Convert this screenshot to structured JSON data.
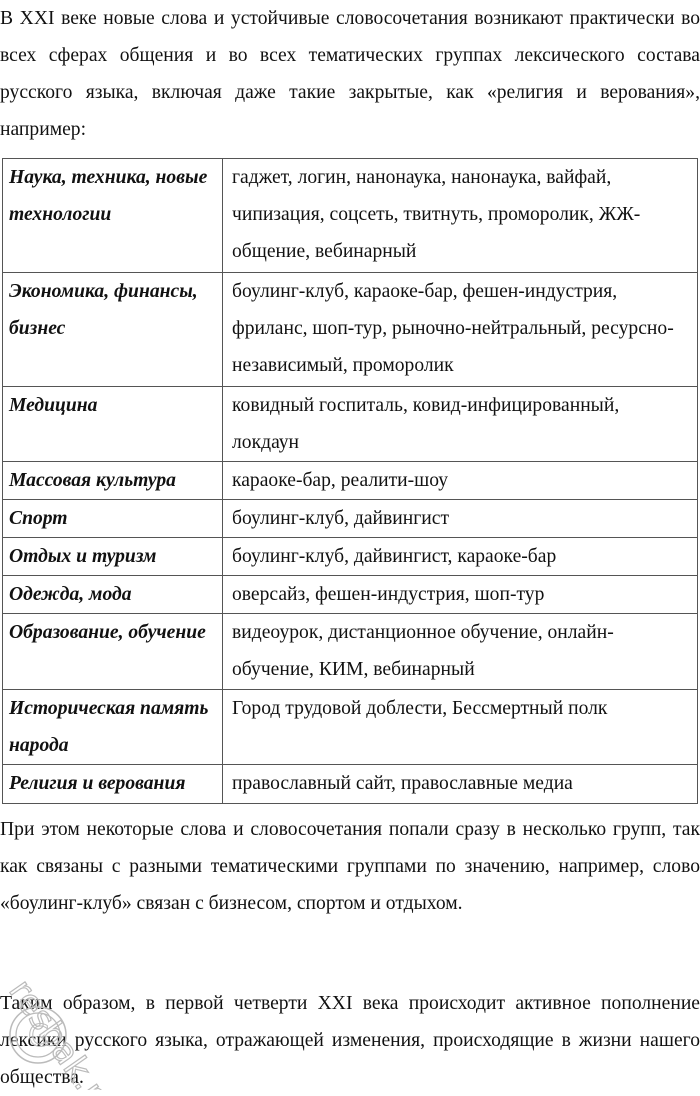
{
  "intro": "В XXI веке новые слова и устойчивые словосочетания возникают практически во всех сферах общения и во всех тематических группах лексического состава русского языка, включая даже такие закрытые, как «религия и верования», например:",
  "table": [
    {
      "category": "Наука, техника, новые технологии",
      "words": "гаджет, логин, нанонаука, нанонаука, вайфай, чипизация, соцсеть, твитнуть, проморолик, ЖЖ-общение, вебинарный"
    },
    {
      "category": "Экономика, финансы, бизнес",
      "words": "боулинг-клуб, караоке-бар, фешен-индустрия, фриланс, шоп-тур, рыночно-нейтральный, ресурсно-независимый, проморолик"
    },
    {
      "category": "Медицина",
      "words": "ковидный госпиталь, ковид-инфицированный, локдаун"
    },
    {
      "category": "Массовая культура",
      "words": "караоке-бар, реалити-шоу"
    },
    {
      "category": "Спорт",
      "words": "боулинг-клуб, дайвингист"
    },
    {
      "category": "Отдых и туризм",
      "words": "боулинг-клуб, дайвингист, караоке-бар"
    },
    {
      "category": "Одежда, мода",
      "words": "оверсайз, фешен-индустрия, шоп-тур"
    },
    {
      "category": "Образование, обучение",
      "words": "видеоурок, дистанционное обучение, онлайн-обучение, КИМ, вебинарный"
    },
    {
      "category": "Историческая память народа",
      "words": "Город трудовой доблести, Бессмертный полк"
    },
    {
      "category": "Религия и верования",
      "words": "православный сайт, православные медиа"
    }
  ],
  "paragraph2": "При этом некоторые слова и словосочетания попали сразу в несколько групп, так как связаны с разными тематическими группами по значению, например, слово «боулинг-клуб» связан с бизнесом, спортом и отдыхом.",
  "paragraph3": "Таким образом, в первой четверти XXI века происходит активное пополнение лексики русского языка, отражающей изменения, происходящие в жизни нашего общества.",
  "watermark": "resbak.ru"
}
